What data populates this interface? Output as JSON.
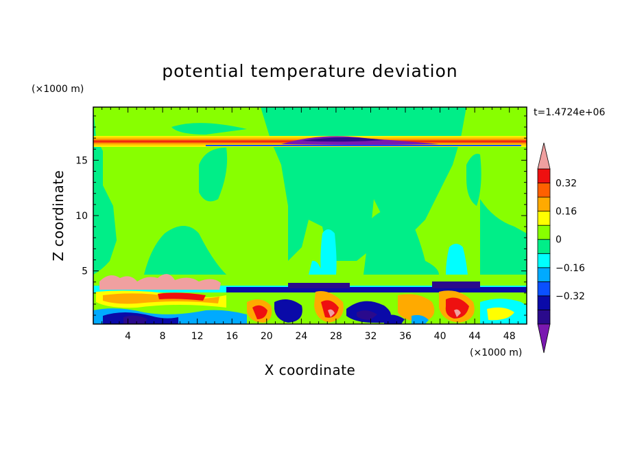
{
  "chart_data": {
    "type": "heatmap",
    "title": "potential temperature deviation",
    "xlabel": "X coordinate",
    "ylabel": "Z coordinate",
    "x_unit": "(×1000 m)",
    "y_unit": "(×1000 m)",
    "time_label": "t=1.4724e+06",
    "xlim": [
      0,
      50
    ],
    "ylim": [
      0.2,
      19.8
    ],
    "x_ticks": [
      4,
      8,
      12,
      16,
      20,
      24,
      28,
      32,
      36,
      40,
      44,
      48
    ],
    "y_ticks": [
      5,
      10,
      15
    ],
    "colorbar": {
      "levels": [
        -0.48,
        -0.4,
        -0.32,
        -0.24,
        -0.16,
        -0.08,
        0,
        0.08,
        0.16,
        0.24,
        0.32,
        0.4
      ],
      "labeled_levels": [
        0.32,
        0.16,
        0,
        -0.16,
        -0.32
      ],
      "labels": [
        "0.32",
        "0.16",
        "0",
        "−0.16",
        "−0.32"
      ],
      "colors_low_to_high": [
        "#7a18b0",
        "#2a0a8c",
        "#0a0aa8",
        "#0a50ff",
        "#00aaff",
        "#00ffff",
        "#00ee88",
        "#88ff00",
        "#ffff00",
        "#ffaa00",
        "#ff6000",
        "#ee1010",
        "#f0a0a0"
      ]
    },
    "fields": [
      {
        "name": "background",
        "value": 0.04
      },
      {
        "name": "tropopause-warm-band",
        "z_range": [
          16.2,
          17.2
        ],
        "value": 0.3
      },
      {
        "name": "upper-cold-lens",
        "x_range": [
          23,
          35
        ],
        "z_range": [
          16.5,
          17.2
        ],
        "value": -0.4
      },
      {
        "name": "boundary-layer",
        "z_range": [
          0.2,
          4.0
        ],
        "value_range": [
          -0.45,
          0.45
        ]
      }
    ]
  }
}
